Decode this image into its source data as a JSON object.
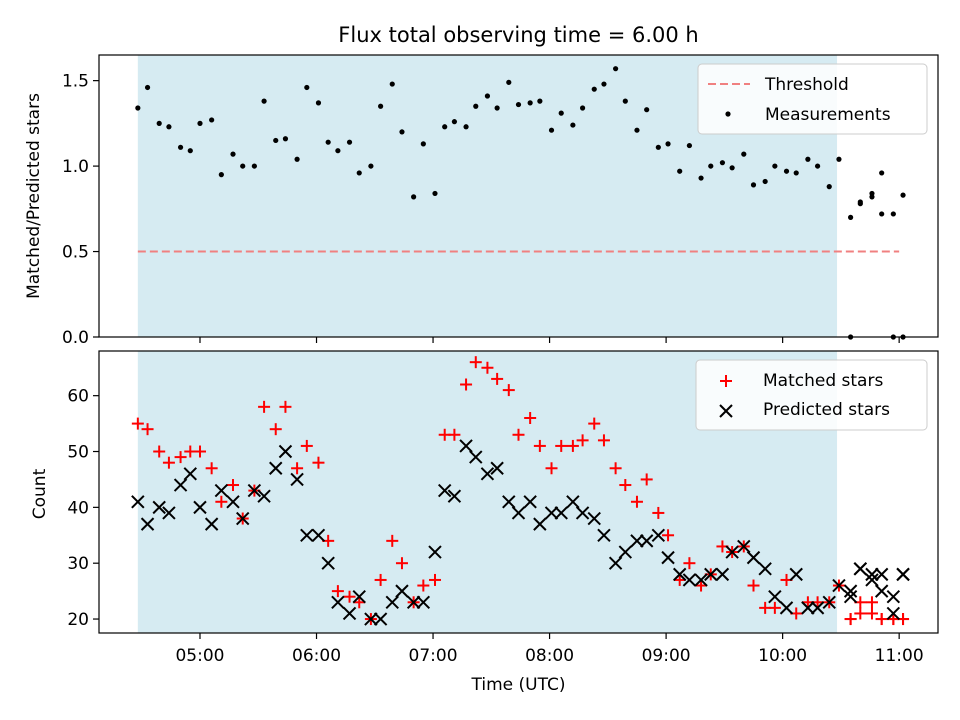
{
  "chart_data": [
    {
      "type": "scatter",
      "title": "Flux total observing time = 6.00 h",
      "ylabel": "Matched/Predicted stars",
      "ylim": [
        0,
        1.65
      ],
      "yticks": [
        "0.0",
        "0.5",
        "1.0",
        "1.5"
      ],
      "observing_window": [
        "04:28",
        "10:28"
      ],
      "legend": {
        "position": "top-right",
        "entries": [
          "Threshold",
          "Measurements"
        ]
      },
      "threshold": {
        "name": "Threshold",
        "value": 0.5,
        "x_start": "04:28",
        "x_end": "11:00",
        "color": "#f08080",
        "style": "dashed"
      },
      "series": [
        {
          "name": "Measurements",
          "color": "#000000",
          "x": [
            "04:28",
            "04:33",
            "04:39",
            "04:44",
            "04:50",
            "04:55",
            "05:00",
            "05:06",
            "05:11",
            "05:17",
            "05:22",
            "05:28",
            "05:33",
            "05:39",
            "05:44",
            "05:50",
            "05:55",
            "06:01",
            "06:06",
            "06:11",
            "06:17",
            "06:22",
            "06:28",
            "06:33",
            "06:39",
            "06:44",
            "06:50",
            "06:55",
            "07:01",
            "07:06",
            "07:11",
            "07:17",
            "07:22",
            "07:28",
            "07:33",
            "07:39",
            "07:44",
            "07:50",
            "07:55",
            "08:01",
            "08:06",
            "08:12",
            "08:17",
            "08:23",
            "08:28",
            "08:34",
            "08:39",
            "08:45",
            "08:50",
            "08:56",
            "09:01",
            "09:07",
            "09:12",
            "09:18",
            "09:23",
            "09:29",
            "09:34",
            "09:40",
            "09:45",
            "09:51",
            "09:56",
            "10:02",
            "10:07",
            "10:13",
            "10:18",
            "10:24",
            "10:29",
            "10:35",
            "10:40",
            "10:46",
            "10:51",
            "10:57",
            "11:02"
          ],
          "y": [
            1.34,
            1.46,
            1.25,
            1.23,
            1.11,
            1.09,
            1.25,
            1.27,
            0.95,
            1.07,
            1.0,
            1.0,
            1.38,
            1.15,
            1.16,
            1.04,
            1.46,
            1.37,
            1.14,
            1.09,
            1.14,
            0.96,
            1.0,
            1.35,
            1.48,
            1.2,
            0.82,
            1.13,
            0.84,
            1.23,
            1.26,
            1.23,
            1.35,
            1.41,
            1.34,
            1.49,
            1.36,
            1.37,
            1.38,
            1.21,
            1.31,
            1.24,
            1.34,
            1.45,
            1.48,
            1.57,
            1.38,
            1.21,
            1.33,
            1.11,
            1.13,
            0.97,
            1.12,
            0.93,
            1.0,
            1.02,
            0.99,
            1.07,
            0.89,
            0.91,
            1.0,
            0.97,
            0.96,
            1.04,
            1.0,
            0.88,
            1.04,
            0.7,
            0.78,
            0.84,
            0.96,
            0.72,
            0.83
          ]
        },
        {
          "name": "",
          "color": "#000000",
          "x": [
            "10:35",
            "10:40",
            "10:46",
            "10:51",
            "10:57",
            "11:02"
          ],
          "y": [
            0.0,
            0.79,
            0.82,
            0.72,
            0.0,
            0.0
          ]
        }
      ]
    },
    {
      "type": "scatter",
      "xlabel": "Time (UTC)",
      "ylabel": "Count",
      "ylim": [
        17.5,
        68
      ],
      "yticks": [
        "20",
        "30",
        "40",
        "50",
        "60"
      ],
      "xticks": [
        "05:00",
        "06:00",
        "07:00",
        "08:00",
        "09:00",
        "10:00",
        "11:00"
      ],
      "observing_window": [
        "04:28",
        "10:28"
      ],
      "legend": {
        "position": "top-right",
        "entries": [
          "Matched stars",
          "Predicted stars"
        ]
      },
      "series": [
        {
          "name": "Matched stars",
          "marker": "+",
          "color": "#ff0000",
          "x": [
            "04:28",
            "04:33",
            "04:39",
            "04:44",
            "04:50",
            "04:55",
            "05:00",
            "05:06",
            "05:11",
            "05:17",
            "05:22",
            "05:28",
            "05:33",
            "05:39",
            "05:44",
            "05:50",
            "05:55",
            "06:01",
            "06:06",
            "06:11",
            "06:17",
            "06:22",
            "06:28",
            "06:33",
            "06:39",
            "06:44",
            "06:50",
            "06:55",
            "07:01",
            "07:06",
            "07:11",
            "07:17",
            "07:22",
            "07:28",
            "07:33",
            "07:39",
            "07:44",
            "07:50",
            "07:55",
            "08:01",
            "08:06",
            "08:12",
            "08:17",
            "08:23",
            "08:28",
            "08:34",
            "08:39",
            "08:45",
            "08:50",
            "08:56",
            "09:01",
            "09:07",
            "09:12",
            "09:18",
            "09:23",
            "09:29",
            "09:34",
            "09:40",
            "09:45",
            "09:51",
            "09:56",
            "10:02",
            "10:07",
            "10:13",
            "10:18",
            "10:24",
            "10:29",
            "10:35",
            "10:40",
            "10:46",
            "10:51",
            "10:57",
            "11:02"
          ],
          "y": [
            55,
            54,
            50,
            48,
            49,
            50,
            50,
            47,
            41,
            44,
            38,
            43,
            58,
            54,
            58,
            47,
            51,
            48,
            34,
            25,
            24,
            23,
            20,
            27,
            34,
            30,
            23,
            26,
            27,
            53,
            53,
            62,
            66,
            65,
            63,
            61,
            53,
            56,
            51,
            47,
            51,
            51,
            52,
            55,
            52,
            47,
            44,
            41,
            45,
            39,
            35,
            27,
            30,
            26,
            28,
            33,
            32,
            33,
            26,
            22,
            22,
            27,
            21,
            23,
            23,
            23,
            26,
            20,
            21,
            21,
            20,
            20,
            20
          ]
        },
        {
          "name": "",
          "marker": "+",
          "color": "#ff0000",
          "x": [
            "10:35",
            "10:40",
            "10:46",
            "10:51",
            "10:57",
            "11:02"
          ],
          "y": [
            20,
            23,
            23,
            20,
            20,
            20
          ]
        },
        {
          "name": "Predicted stars",
          "marker": "x",
          "color": "#000000",
          "x": [
            "04:28",
            "04:33",
            "04:39",
            "04:44",
            "04:50",
            "04:55",
            "05:00",
            "05:06",
            "05:11",
            "05:17",
            "05:22",
            "05:28",
            "05:33",
            "05:39",
            "05:44",
            "05:50",
            "05:55",
            "06:01",
            "06:06",
            "06:11",
            "06:17",
            "06:22",
            "06:28",
            "06:33",
            "06:39",
            "06:44",
            "06:50",
            "06:55",
            "07:01",
            "07:06",
            "07:11",
            "07:17",
            "07:22",
            "07:28",
            "07:33",
            "07:39",
            "07:44",
            "07:50",
            "07:55",
            "08:01",
            "08:06",
            "08:12",
            "08:17",
            "08:23",
            "08:28",
            "08:34",
            "08:39",
            "08:45",
            "08:50",
            "08:56",
            "09:01",
            "09:07",
            "09:12",
            "09:18",
            "09:23",
            "09:29",
            "09:34",
            "09:40",
            "09:45",
            "09:51",
            "09:56",
            "10:02",
            "10:07",
            "10:13",
            "10:18",
            "10:24",
            "10:29",
            "10:35",
            "10:40",
            "10:46",
            "10:51",
            "10:57",
            "11:02"
          ],
          "y": [
            41,
            37,
            40,
            39,
            44,
            46,
            40,
            37,
            43,
            41,
            38,
            43,
            42,
            47,
            50,
            45,
            35,
            35,
            30,
            23,
            21,
            24,
            20,
            20,
            23,
            25,
            23,
            23,
            32,
            43,
            42,
            51,
            49,
            46,
            47,
            41,
            39,
            41,
            37,
            39,
            39,
            41,
            39,
            38,
            35,
            30,
            32,
            34,
            34,
            35,
            31,
            28,
            27,
            27,
            28,
            28,
            32,
            33,
            31,
            29,
            24,
            22,
            28,
            22,
            22,
            23,
            26,
            25,
            29,
            27,
            25,
            21,
            28
          ]
        },
        {
          "name": "",
          "marker": "x",
          "color": "#000000",
          "x": [
            "10:35",
            "10:40",
            "10:46",
            "10:51",
            "10:57",
            "11:02"
          ],
          "y": [
            24,
            29,
            28,
            28,
            24,
            28
          ]
        }
      ]
    }
  ]
}
